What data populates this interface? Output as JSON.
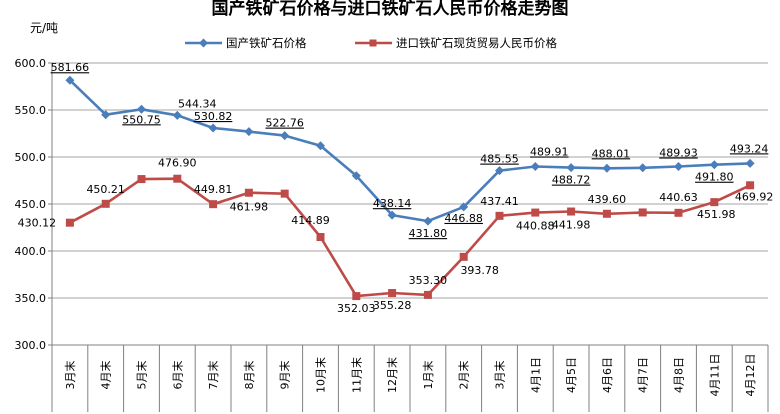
{
  "chart_data": {
    "type": "line",
    "title": "国产铁矿石价格与进口铁矿石人民币价格走势图",
    "ylabel": "元/吨",
    "ylim": [
      300,
      600
    ],
    "yticks": [
      "300.0",
      "350.0",
      "400.0",
      "450.0",
      "500.0",
      "550.0",
      "600.0"
    ],
    "grid": true,
    "legend_position": "top",
    "categories": [
      "3月末",
      "4月末",
      "5月末",
      "6月末",
      "7月末",
      "8月末",
      "9月末",
      "10月末",
      "11月末",
      "12月末",
      "1月末",
      "2月末",
      "3月末",
      "4月1日",
      "4月5日",
      "4月6日",
      "4月7日",
      "4月8日",
      "4月11日",
      "4月12日"
    ],
    "series": [
      {
        "name": "国产铁矿石价格",
        "color": "#4a7ebb",
        "marker": "diamond",
        "values": [
          581.66,
          545,
          550.75,
          544.34,
          530.82,
          527,
          522.76,
          512,
          480,
          438.14,
          431.8,
          446.88,
          485.55,
          489.91,
          488.72,
          488.01,
          488.5,
          489.93,
          491.8,
          493.24
        ],
        "labels": [
          "581.66",
          "",
          "550.75",
          "544.34",
          "530.82",
          "",
          "522.76",
          "",
          "",
          "438.14",
          "431.80",
          "446.88",
          "485.55",
          "489.91",
          "488.72",
          "488.01",
          "",
          "489.93",
          "491.80",
          "493.24"
        ]
      },
      {
        "name": "进口铁矿石现货贸易人民币价格",
        "color": "#be4b48",
        "marker": "square",
        "values": [
          430.12,
          450.21,
          476.5,
          476.9,
          449.81,
          461.98,
          461,
          414.89,
          352.03,
          355.28,
          353.3,
          393.78,
          437.41,
          440.88,
          441.98,
          439.6,
          441,
          440.63,
          451.98,
          469.92
        ],
        "labels": [
          "430.12",
          "450.21",
          "",
          "476.90",
          "449.81",
          "461.98",
          "",
          "414.89",
          "352.03",
          "355.28",
          "353.30",
          "393.78",
          "437.41",
          "440.88",
          "441.98",
          "439.60",
          "",
          "440.63",
          "451.98",
          "469.92"
        ]
      }
    ]
  }
}
